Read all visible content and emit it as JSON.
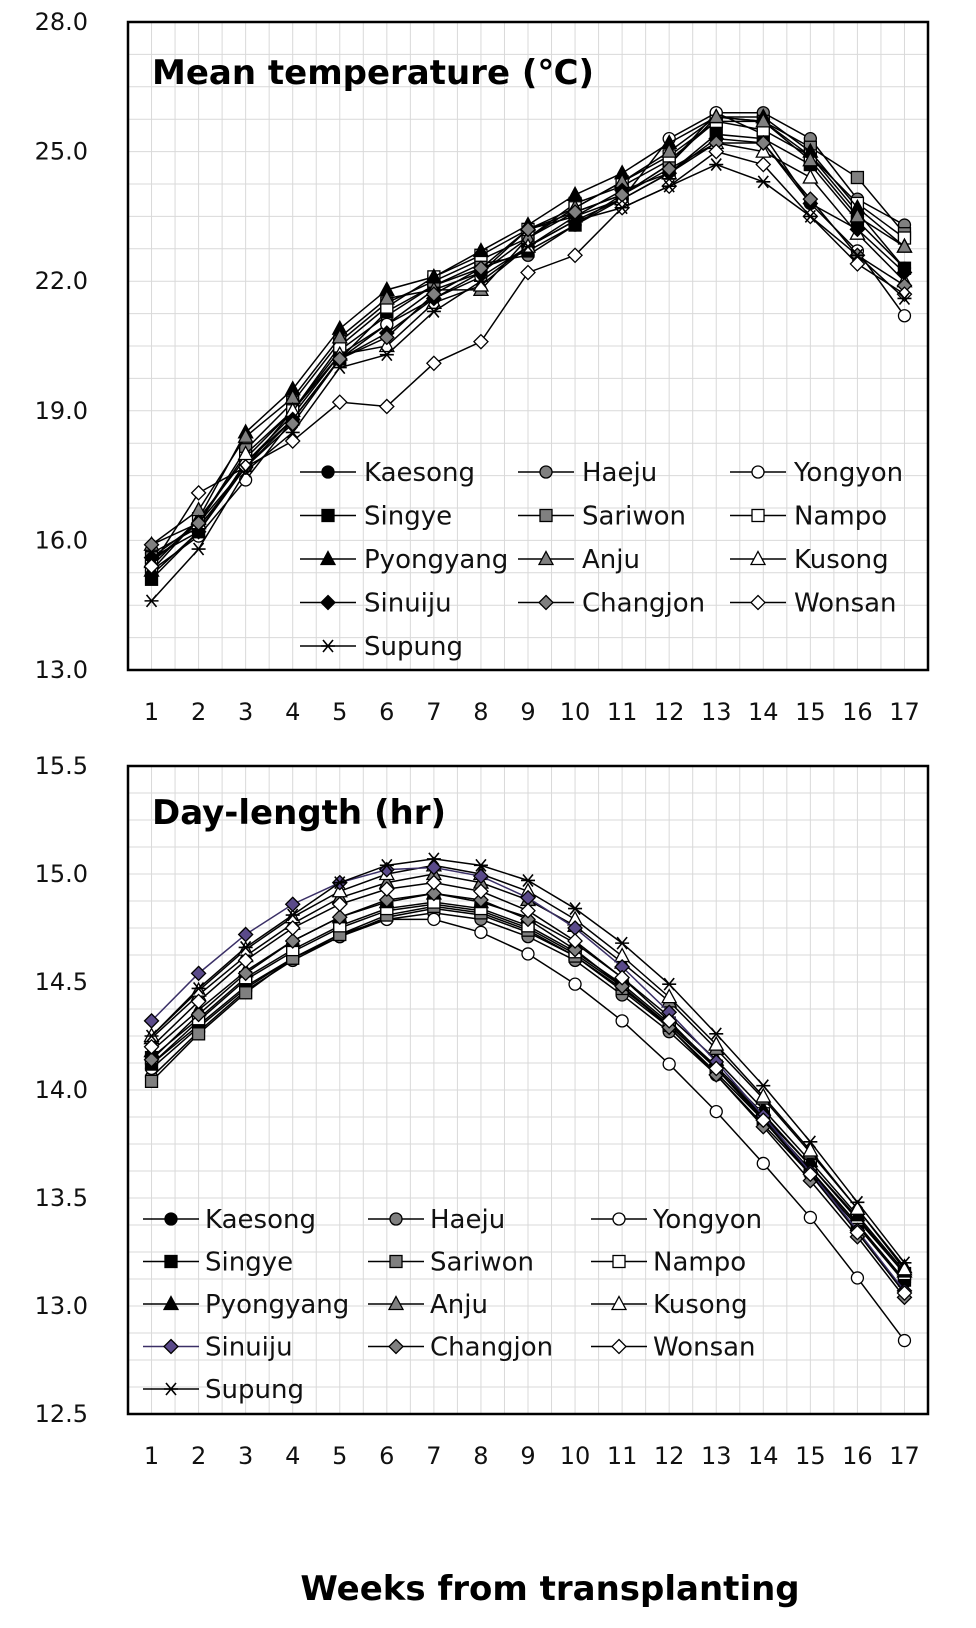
{
  "xlabel": "Weeks from transplanting",
  "chart_data": [
    {
      "type": "line",
      "title": "Mean temperature (℃)",
      "ylim": [
        13.0,
        28.0
      ],
      "yticks": [
        "13.0",
        "16.0",
        "19.0",
        "22.0",
        "25.0",
        "28.0"
      ],
      "x": [
        1,
        2,
        3,
        4,
        5,
        6,
        7,
        8,
        9,
        10,
        11,
        12,
        13,
        14,
        15,
        16,
        17
      ],
      "xticks": [
        "1",
        "2",
        "3",
        "4",
        "5",
        "6",
        "7",
        "8",
        "9",
        "10",
        "11",
        "12",
        "13",
        "14",
        "15",
        "16",
        "17"
      ],
      "grid": true,
      "legend": "bottom-right",
      "series": [
        {
          "name": "Kaesong",
          "marker": "circle",
          "fill": "#000000",
          "values": [
            15.2,
            16.2,
            17.8,
            18.9,
            20.3,
            21.0,
            21.8,
            22.2,
            23.0,
            23.6,
            24.0,
            24.7,
            25.8,
            25.7,
            24.9,
            23.6,
            22.3
          ]
        },
        {
          "name": "Haeju",
          "marker": "circle",
          "fill": "#808080",
          "values": [
            15.7,
            16.3,
            17.7,
            19.0,
            20.4,
            21.2,
            21.9,
            22.4,
            22.6,
            23.3,
            24.0,
            24.7,
            25.9,
            25.9,
            25.3,
            23.9,
            23.3
          ]
        },
        {
          "name": "Yongyon",
          "marker": "circle",
          "fill": "#ffffff",
          "values": [
            15.3,
            16.1,
            17.4,
            18.8,
            20.2,
            21.0,
            21.6,
            22.1,
            22.8,
            23.4,
            23.9,
            25.3,
            25.9,
            25.4,
            23.8,
            22.7,
            21.2
          ]
        },
        {
          "name": "Singye",
          "marker": "square",
          "fill": "#000000",
          "values": [
            15.1,
            16.2,
            17.8,
            18.8,
            20.2,
            21.3,
            21.9,
            22.3,
            22.7,
            23.3,
            23.9,
            24.5,
            25.4,
            25.3,
            24.7,
            23.4,
            22.3
          ]
        },
        {
          "name": "Sariwon",
          "marker": "square",
          "fill": "#808080",
          "values": [
            15.6,
            16.4,
            18.1,
            19.2,
            20.6,
            21.5,
            22.0,
            22.5,
            23.0,
            23.8,
            24.2,
            24.8,
            25.7,
            25.7,
            25.1,
            24.4,
            23.1
          ]
        },
        {
          "name": "Nampo",
          "marker": "square",
          "fill": "#ffffff",
          "values": [
            15.4,
            16.5,
            17.9,
            19.0,
            20.5,
            21.4,
            22.1,
            22.6,
            23.2,
            23.7,
            24.3,
            24.9,
            25.7,
            25.5,
            24.9,
            23.8,
            23.0
          ]
        },
        {
          "name": "Pyongyang",
          "marker": "triangle",
          "fill": "#000000",
          "values": [
            15.3,
            16.5,
            18.5,
            19.5,
            20.9,
            21.8,
            22.1,
            22.7,
            23.3,
            24.0,
            24.5,
            25.2,
            25.8,
            25.8,
            25.0,
            23.7,
            22.8
          ]
        },
        {
          "name": "Anju",
          "marker": "triangle",
          "fill": "#808080",
          "values": [
            15.9,
            16.7,
            18.4,
            19.3,
            20.7,
            21.6,
            21.8,
            21.8,
            23.0,
            23.7,
            24.3,
            25.0,
            25.8,
            25.7,
            24.8,
            23.5,
            22.8
          ]
        },
        {
          "name": "Kusong",
          "marker": "triangle",
          "fill": "#ffffff",
          "values": [
            15.5,
            16.4,
            18.0,
            19.0,
            20.3,
            20.5,
            21.5,
            21.9,
            22.8,
            23.5,
            23.9,
            24.5,
            25.2,
            25.0,
            24.4,
            23.1,
            22.0
          ]
        },
        {
          "name": "Sinuiju",
          "marker": "diamond",
          "fill": "#000000",
          "values": [
            15.6,
            16.2,
            17.7,
            18.8,
            20.2,
            20.8,
            21.6,
            22.2,
            23.2,
            23.5,
            24.1,
            24.5,
            25.3,
            25.2,
            23.8,
            23.2,
            22.2
          ]
        },
        {
          "name": "Changjon",
          "marker": "diamond",
          "fill": "#808080",
          "values": [
            15.9,
            16.4,
            17.7,
            18.7,
            20.2,
            20.7,
            21.7,
            22.3,
            23.2,
            23.6,
            24.0,
            24.6,
            25.2,
            25.2,
            23.9,
            22.6,
            21.9
          ]
        },
        {
          "name": "Wonsan",
          "marker": "diamond",
          "fill": "#ffffff",
          "values": [
            15.4,
            17.1,
            17.7,
            18.3,
            19.2,
            19.1,
            20.1,
            20.6,
            22.2,
            22.6,
            23.7,
            24.2,
            25.0,
            24.7,
            23.5,
            22.4,
            21.7
          ]
        },
        {
          "name": "Supung",
          "marker": "star",
          "fill": "#000000",
          "values": [
            14.6,
            15.8,
            17.6,
            18.5,
            20.0,
            20.3,
            21.3,
            22.0,
            22.8,
            23.4,
            23.7,
            24.2,
            24.7,
            24.3,
            23.5,
            22.6,
            21.6
          ]
        }
      ]
    },
    {
      "type": "line",
      "title": "Day-length (hr)",
      "ylim": [
        12.5,
        15.5
      ],
      "yticks": [
        "12.5",
        "13.0",
        "13.5",
        "14.0",
        "14.5",
        "15.0",
        "15.5"
      ],
      "x": [
        1,
        2,
        3,
        4,
        5,
        6,
        7,
        8,
        9,
        10,
        11,
        12,
        13,
        14,
        15,
        16,
        17
      ],
      "xticks": [
        "1",
        "2",
        "3",
        "4",
        "5",
        "6",
        "7",
        "8",
        "9",
        "10",
        "11",
        "12",
        "13",
        "14",
        "15",
        "16",
        "17"
      ],
      "grid": true,
      "legend": "bottom-left",
      "series": [
        {
          "name": "Kaesong",
          "marker": "circle",
          "fill": "#000000",
          "values": [
            14.12,
            14.3,
            14.48,
            14.61,
            14.71,
            14.8,
            14.84,
            14.81,
            14.73,
            14.62,
            14.46,
            14.29,
            14.08,
            13.86,
            13.62,
            13.38,
            13.12
          ]
        },
        {
          "name": "Haeju",
          "marker": "circle",
          "fill": "#808080",
          "values": [
            14.06,
            14.27,
            14.46,
            14.6,
            14.71,
            14.79,
            14.82,
            14.79,
            14.71,
            14.6,
            14.44,
            14.27,
            14.07,
            13.84,
            13.61,
            13.37,
            13.11
          ]
        },
        {
          "name": "Yongyon",
          "marker": "circle",
          "fill": "#ffffff",
          "values": [
            14.1,
            14.29,
            14.47,
            14.61,
            14.72,
            14.79,
            14.79,
            14.73,
            14.63,
            14.49,
            14.32,
            14.12,
            13.9,
            13.66,
            13.41,
            13.13,
            12.84
          ]
        },
        {
          "name": "Singye",
          "marker": "square",
          "fill": "#000000",
          "values": [
            14.12,
            14.32,
            14.51,
            14.64,
            14.75,
            14.83,
            14.86,
            14.83,
            14.75,
            14.63,
            14.48,
            14.3,
            14.1,
            13.87,
            13.63,
            13.38,
            13.12
          ]
        },
        {
          "name": "Sariwon",
          "marker": "square",
          "fill": "#808080",
          "values": [
            14.04,
            14.26,
            14.45,
            14.61,
            14.72,
            14.81,
            14.85,
            14.82,
            14.74,
            14.62,
            14.47,
            14.3,
            14.1,
            13.88,
            13.65,
            13.4,
            13.15
          ]
        },
        {
          "name": "Nampo",
          "marker": "square",
          "fill": "#ffffff",
          "values": [
            14.15,
            14.33,
            14.52,
            14.65,
            14.76,
            14.84,
            14.87,
            14.84,
            14.76,
            14.64,
            14.49,
            14.31,
            14.11,
            13.89,
            13.65,
            13.41,
            13.15
          ]
        },
        {
          "name": "Pyongyang",
          "marker": "triangle",
          "fill": "#000000",
          "values": [
            14.18,
            14.37,
            14.55,
            14.69,
            14.8,
            14.87,
            14.91,
            14.87,
            14.8,
            14.68,
            14.52,
            14.34,
            14.14,
            13.91,
            13.67,
            13.42,
            13.16
          ]
        },
        {
          "name": "Anju",
          "marker": "triangle",
          "fill": "#808080",
          "values": [
            14.24,
            14.44,
            14.62,
            14.77,
            14.89,
            14.96,
            15.0,
            14.96,
            14.88,
            14.76,
            14.59,
            14.41,
            14.19,
            13.96,
            13.71,
            13.45,
            13.18
          ]
        },
        {
          "name": "Kusong",
          "marker": "triangle",
          "fill": "#ffffff",
          "values": [
            14.25,
            14.46,
            14.65,
            14.8,
            14.92,
            15.0,
            15.04,
            15.0,
            14.92,
            14.79,
            14.62,
            14.43,
            14.21,
            13.97,
            13.72,
            13.45,
            13.17
          ]
        },
        {
          "name": "Sinuiju",
          "marker": "diamond",
          "fill": "#5a4a8a",
          "values": [
            14.32,
            14.54,
            14.72,
            14.86,
            14.96,
            15.02,
            15.03,
            14.99,
            14.89,
            14.75,
            14.57,
            14.36,
            14.13,
            13.88,
            13.62,
            13.35,
            13.07
          ]
        },
        {
          "name": "Changjon",
          "marker": "diamond",
          "fill": "#808080",
          "values": [
            14.14,
            14.35,
            14.54,
            14.69,
            14.8,
            14.88,
            14.91,
            14.88,
            14.79,
            14.65,
            14.48,
            14.29,
            14.07,
            13.83,
            13.58,
            13.32,
            13.04
          ]
        },
        {
          "name": "Wonsan",
          "marker": "diamond",
          "fill": "#ffffff",
          "values": [
            14.2,
            14.41,
            14.6,
            14.75,
            14.86,
            14.93,
            14.96,
            14.92,
            14.83,
            14.69,
            14.52,
            14.32,
            14.1,
            13.86,
            13.61,
            13.34,
            13.06
          ]
        },
        {
          "name": "Supung",
          "marker": "star",
          "fill": "#000000",
          "values": [
            14.25,
            14.47,
            14.66,
            14.81,
            14.96,
            15.04,
            15.07,
            15.04,
            14.97,
            14.84,
            14.68,
            14.49,
            14.26,
            14.02,
            13.76,
            13.48,
            13.2
          ]
        }
      ]
    }
  ]
}
